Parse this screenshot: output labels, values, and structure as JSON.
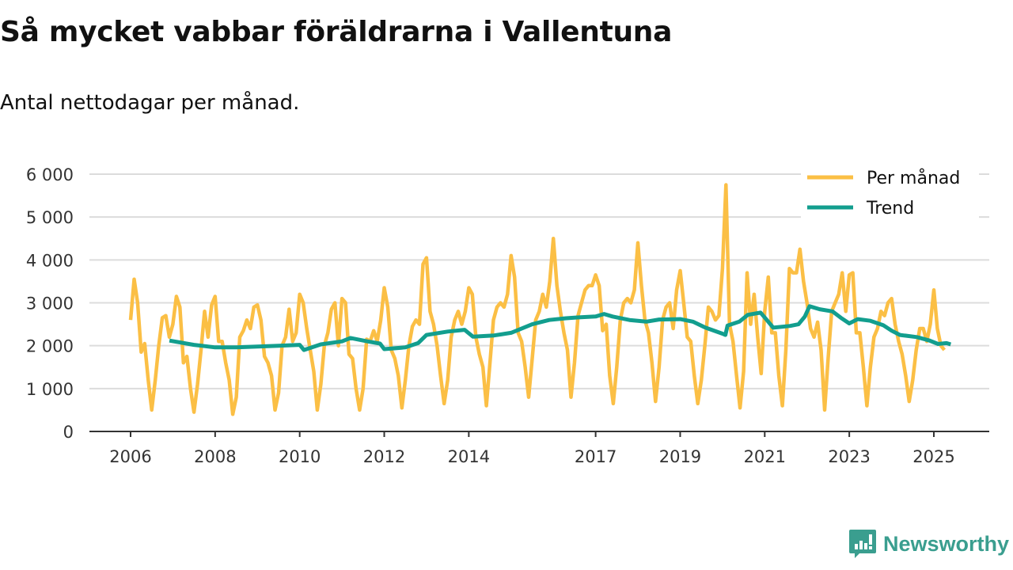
{
  "chart_data": {
    "type": "line",
    "title": "Så mycket vabbar föräldrarna i Vallentuna",
    "subtitle": "Antal nettodagar per månad.",
    "xlabel": "",
    "ylabel": "",
    "ylim": [
      0,
      6000
    ],
    "xlim": [
      2004.9,
      2026.3
    ],
    "grid": true,
    "legend_position": "top-right",
    "y_ticks": [
      {
        "value": 0,
        "label": "0"
      },
      {
        "value": 1000,
        "label": "1 000"
      },
      {
        "value": 2000,
        "label": "2 000"
      },
      {
        "value": 3000,
        "label": "3 000"
      },
      {
        "value": 4000,
        "label": "4 000"
      },
      {
        "value": 5000,
        "label": "5 000"
      },
      {
        "value": 6000,
        "label": "6 000"
      }
    ],
    "x_ticks": [
      {
        "value": 2006,
        "label": "2006"
      },
      {
        "value": 2008,
        "label": "2008"
      },
      {
        "value": 2010,
        "label": "2010"
      },
      {
        "value": 2012,
        "label": "2012"
      },
      {
        "value": 2014,
        "label": "2014"
      },
      {
        "value": 2017,
        "label": "2017"
      },
      {
        "value": 2019,
        "label": "2019"
      },
      {
        "value": 2021,
        "label": "2021"
      },
      {
        "value": 2023,
        "label": "2023"
      },
      {
        "value": 2025,
        "label": "2025"
      }
    ],
    "series": [
      {
        "name": "Per månad",
        "color": "#fbbf45",
        "start": "2006-01",
        "frequency": "monthly",
        "values": [
          2600,
          3550,
          3000,
          1850,
          2050,
          1200,
          500,
          1200,
          2000,
          2650,
          2700,
          2200,
          2500,
          3150,
          2900,
          1600,
          1750,
          1000,
          450,
          1100,
          1900,
          2800,
          2200,
          2950,
          3150,
          2100,
          2100,
          1600,
          1200,
          400,
          800,
          2200,
          2350,
          2600,
          2400,
          2900,
          2950,
          2600,
          1750,
          1600,
          1300,
          500,
          900,
          2000,
          2200,
          2850,
          2100,
          2300,
          3200,
          3000,
          2400,
          1900,
          1400,
          500,
          1100,
          2000,
          2300,
          2850,
          3000,
          2000,
          3100,
          3000,
          1800,
          1700,
          1000,
          500,
          1000,
          2150,
          2100,
          2350,
          2100,
          2600,
          3350,
          2900,
          1900,
          1700,
          1300,
          550,
          1200,
          2000,
          2450,
          2600,
          2500,
          3900,
          4050,
          2800,
          2500,
          2000,
          1300,
          650,
          1200,
          2200,
          2600,
          2800,
          2500,
          2800,
          3350,
          3200,
          2200,
          1800,
          1500,
          600,
          1600,
          2600,
          2900,
          3000,
          2900,
          3200,
          4100,
          3600,
          2300,
          2100,
          1500,
          800,
          1700,
          2600,
          2800,
          3200,
          2900,
          3500,
          4500,
          3400,
          2800,
          2300,
          1900,
          800,
          1600,
          2700,
          3000,
          3300,
          3400,
          3400,
          3650,
          3400,
          2350,
          2500,
          1300,
          650,
          1500,
          2600,
          3000,
          3100,
          3000,
          3300,
          4400,
          3400,
          2600,
          2300,
          1600,
          700,
          1500,
          2600,
          2900,
          3000,
          2400,
          3300,
          3750,
          3000,
          2200,
          2100,
          1300,
          650,
          1200,
          2000,
          2900,
          2800,
          2600,
          2700,
          3800,
          5750,
          2500,
          2100,
          1300,
          550,
          1400,
          3700,
          2500,
          3200,
          2200,
          1350,
          2800,
          3600,
          2300,
          2300,
          1300,
          600,
          1900,
          3800,
          3700,
          3700,
          4250,
          3500,
          3000,
          2400,
          2200,
          2550,
          1900,
          500,
          1700,
          2800,
          3000,
          3200,
          3700,
          2800,
          3650,
          3700,
          2300,
          2300,
          1500,
          600,
          1500,
          2200,
          2400,
          2800,
          2700,
          3000,
          3100,
          2500,
          2100,
          1800,
          1300,
          700,
          1200,
          1900,
          2400,
          2400,
          2100,
          2500,
          3300,
          2400,
          2000,
          1900
        ]
      },
      {
        "name": "Trend",
        "color": "#129e8e",
        "points": [
          [
            2006.92,
            2120
          ],
          [
            2007.5,
            2020
          ],
          [
            2008.0,
            1960
          ],
          [
            2008.5,
            1960
          ],
          [
            2009.0,
            1980
          ],
          [
            2009.5,
            2000
          ],
          [
            2010.0,
            2020
          ],
          [
            2010.1,
            1900
          ],
          [
            2010.5,
            2030
          ],
          [
            2011.0,
            2100
          ],
          [
            2011.2,
            2180
          ],
          [
            2011.6,
            2100
          ],
          [
            2011.9,
            2050
          ],
          [
            2012.0,
            1920
          ],
          [
            2012.5,
            1960
          ],
          [
            2012.8,
            2060
          ],
          [
            2013.0,
            2250
          ],
          [
            2013.5,
            2330
          ],
          [
            2013.9,
            2370
          ],
          [
            2014.1,
            2210
          ],
          [
            2014.6,
            2240
          ],
          [
            2015.0,
            2300
          ],
          [
            2015.5,
            2500
          ],
          [
            2015.9,
            2600
          ],
          [
            2016.3,
            2640
          ],
          [
            2016.6,
            2660
          ],
          [
            2017.0,
            2680
          ],
          [
            2017.2,
            2740
          ],
          [
            2017.4,
            2680
          ],
          [
            2017.8,
            2600
          ],
          [
            2018.2,
            2560
          ],
          [
            2018.5,
            2610
          ],
          [
            2019.0,
            2620
          ],
          [
            2019.3,
            2560
          ],
          [
            2019.6,
            2420
          ],
          [
            2020.0,
            2280
          ],
          [
            2020.07,
            2250
          ],
          [
            2020.12,
            2470
          ],
          [
            2020.4,
            2560
          ],
          [
            2020.6,
            2720
          ],
          [
            2020.9,
            2770
          ],
          [
            2021.05,
            2600
          ],
          [
            2021.2,
            2420
          ],
          [
            2021.6,
            2460
          ],
          [
            2021.8,
            2500
          ],
          [
            2021.95,
            2680
          ],
          [
            2022.06,
            2920
          ],
          [
            2022.3,
            2850
          ],
          [
            2022.6,
            2800
          ],
          [
            2022.8,
            2650
          ],
          [
            2023.0,
            2520
          ],
          [
            2023.2,
            2620
          ],
          [
            2023.5,
            2580
          ],
          [
            2023.8,
            2480
          ],
          [
            2024.0,
            2350
          ],
          [
            2024.2,
            2250
          ],
          [
            2024.6,
            2200
          ],
          [
            2024.9,
            2120
          ],
          [
            2025.1,
            2040
          ],
          [
            2025.3,
            2060
          ],
          [
            2025.4,
            2030
          ]
        ]
      }
    ]
  },
  "brand": {
    "name": "Newsworthy",
    "color": "#3a9e8f"
  }
}
